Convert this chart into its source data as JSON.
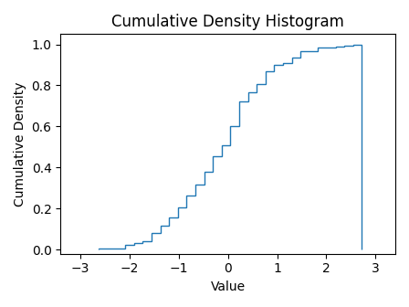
{
  "title": "Cumulative Density Histogram",
  "xlabel": "Value",
  "ylabel": "Cumulative Density",
  "seed": 42,
  "n_samples": 200,
  "n_bins": 30,
  "line_color": "#1f77b4",
  "xlim": [
    -3.5,
    3.5
  ],
  "ylim": [
    -0.02,
    1.05
  ],
  "figsize": [
    4.48,
    3.36
  ],
  "dpi": 100
}
